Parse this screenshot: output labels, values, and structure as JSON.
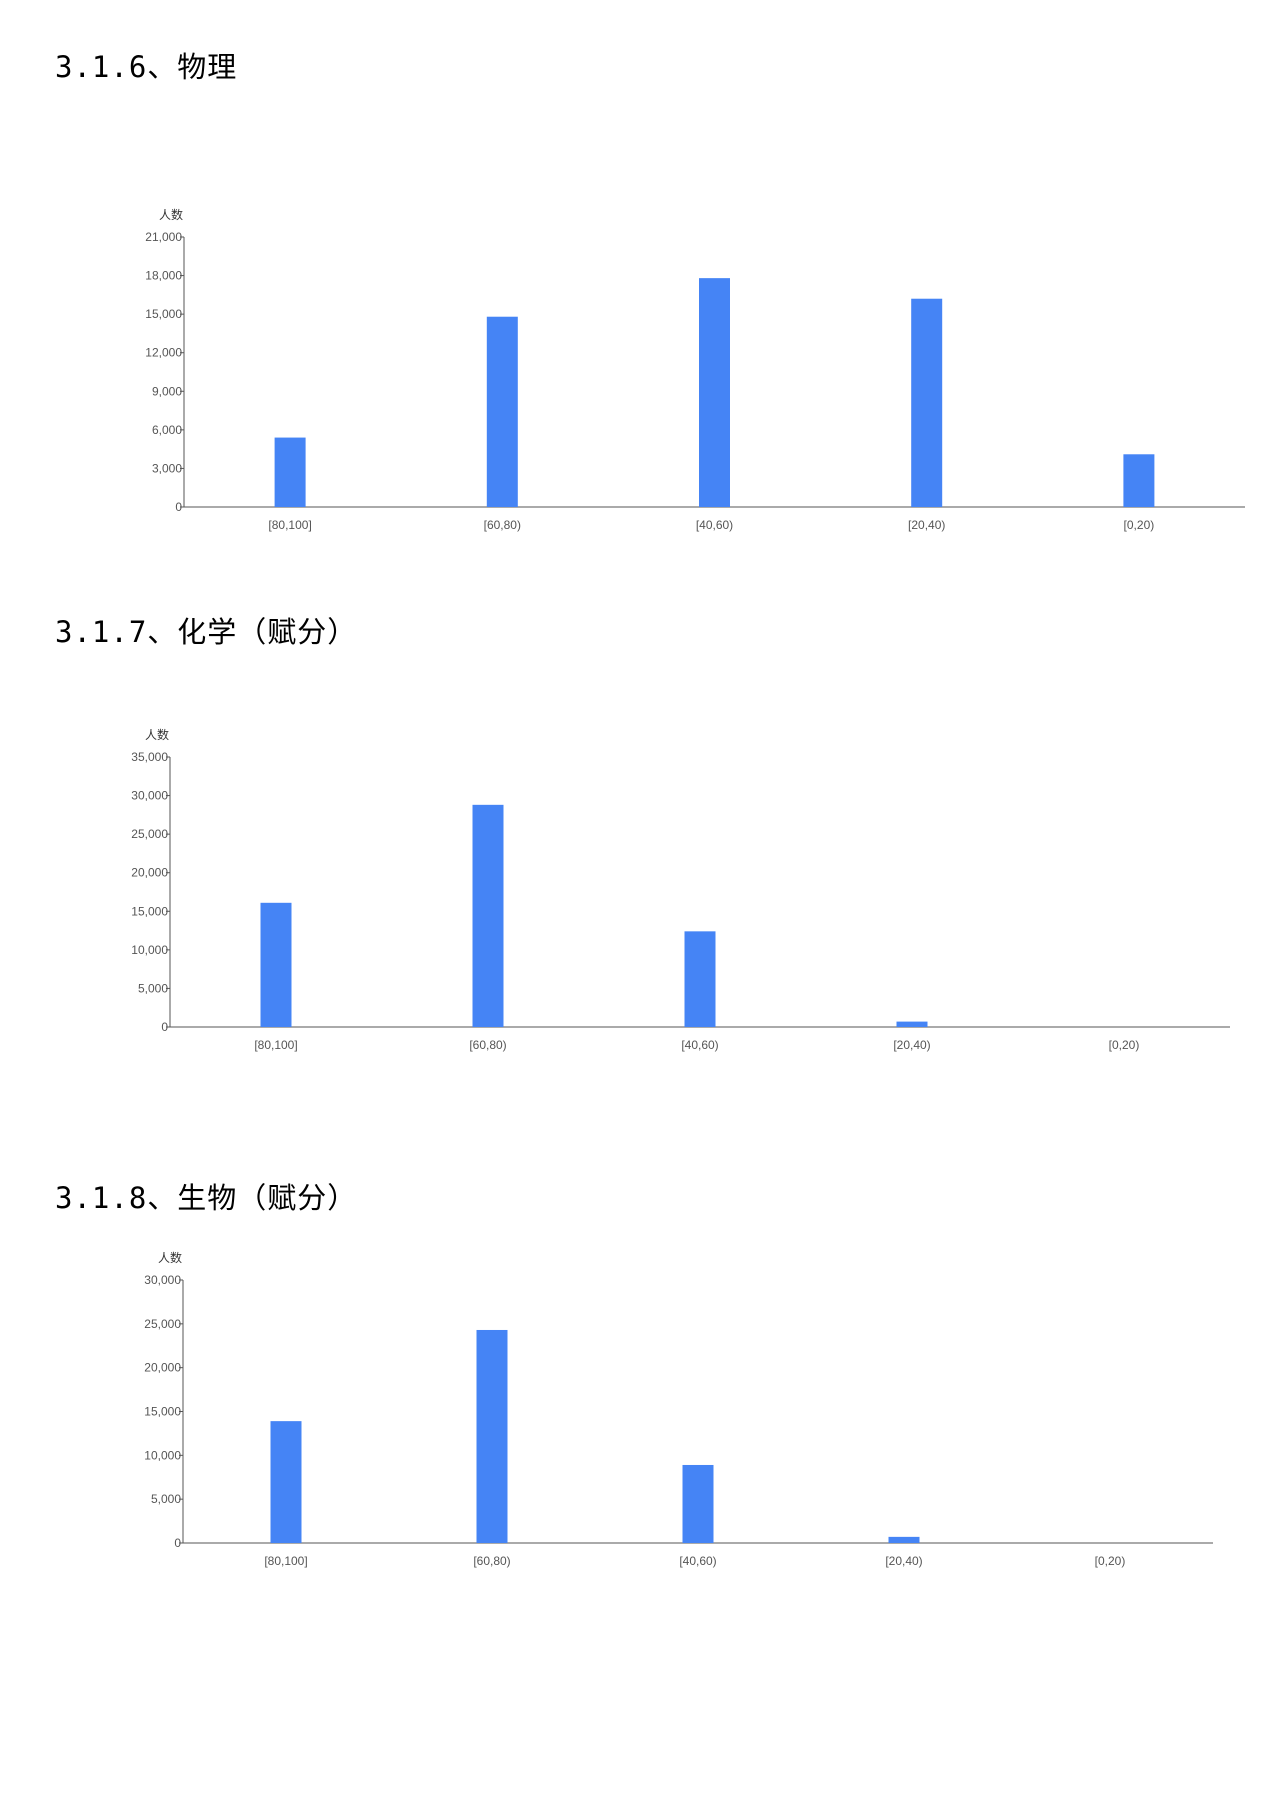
{
  "sections": [
    {
      "title": "3.1.6、物理"
    },
    {
      "title": "3.1.7、化学（赋分）"
    },
    {
      "title": "3.1.8、生物（赋分）"
    }
  ],
  "colors": {
    "bar": "#4584f5",
    "axis": "#555555"
  },
  "chart_data": [
    {
      "type": "bar",
      "title": "",
      "ylabel": "人数",
      "categories": [
        "[80,100]",
        "[60,80)",
        "[40,60)",
        "[20,40)",
        "[0,20)"
      ],
      "values": [
        5400,
        14800,
        17800,
        16200,
        4100
      ],
      "ylim": [
        0,
        21000
      ],
      "yticks": [
        0,
        3000,
        6000,
        9000,
        12000,
        15000,
        18000,
        21000
      ],
      "ytick_labels": [
        "0",
        "3,000",
        "6,000",
        "9,000",
        "12,000",
        "15,000",
        "18,000",
        "21,000"
      ],
      "grid": false,
      "legend": "none"
    },
    {
      "type": "bar",
      "title": "",
      "ylabel": "人数",
      "categories": [
        "[80,100]",
        "[60,80)",
        "[40,60)",
        "[20,40)",
        "[0,20)"
      ],
      "values": [
        16100,
        28800,
        12400,
        700,
        0
      ],
      "ylim": [
        0,
        35000
      ],
      "yticks": [
        0,
        5000,
        10000,
        15000,
        20000,
        25000,
        30000,
        35000
      ],
      "ytick_labels": [
        "0",
        "5,000",
        "10,000",
        "15,000",
        "20,000",
        "25,000",
        "30,000",
        "35,000"
      ],
      "grid": false,
      "legend": "none"
    },
    {
      "type": "bar",
      "title": "",
      "ylabel": "人数",
      "categories": [
        "[80,100]",
        "[60,80)",
        "[40,60)",
        "[20,40)",
        "[0,20)"
      ],
      "values": [
        13900,
        24300,
        8900,
        700,
        0
      ],
      "ylim": [
        0,
        30000
      ],
      "yticks": [
        0,
        5000,
        10000,
        15000,
        20000,
        25000,
        30000
      ],
      "ytick_labels": [
        "0",
        "5,000",
        "10,000",
        "15,000",
        "20,000",
        "25,000",
        "30,000"
      ],
      "grid": false,
      "legend": "none"
    }
  ]
}
